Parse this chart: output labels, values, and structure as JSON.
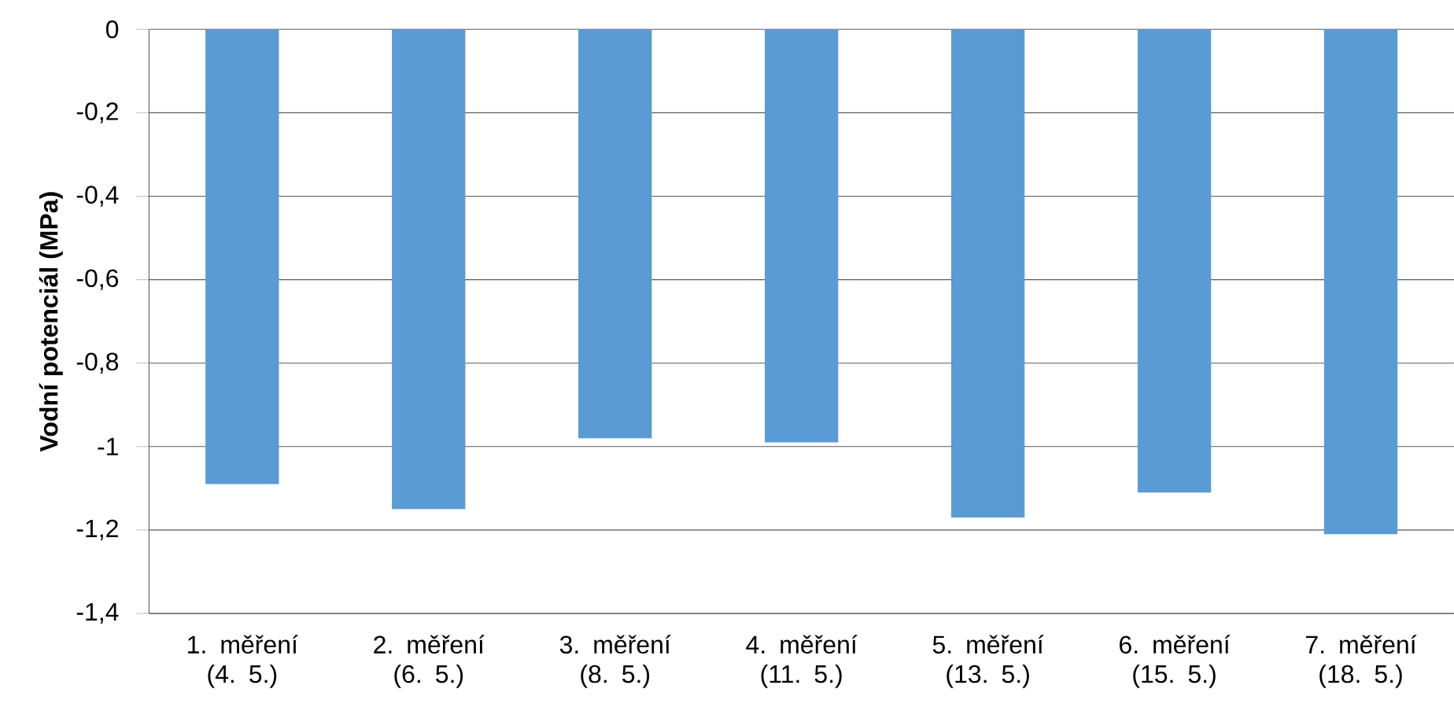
{
  "chart_data": {
    "type": "bar",
    "ylabel": "**Vodní potenciál (MPa)**",
    "categories": [
      "1. měření (4. 5.)",
      "2. měření (6. 5.)",
      "3. měření (8. 5.)",
      "4. měření (11. 5.)",
      "5. měření (13. 5.)",
      "6. měření (15. 5.)",
      "7. měření (18. 5.)"
    ],
    "values": [
      -1.09,
      -1.15,
      -0.98,
      -0.99,
      -1.17,
      -1.11,
      -1.21
    ],
    "color": "#5b9bd5",
    "ylim": [
      -1.4,
      0
    ],
    "yticks": [
      {
        "value": -1.4,
        "label": "-1,4"
      },
      {
        "value": -1.2,
        "label": "-1,2"
      },
      {
        "value": -1,
        "label": "-1"
      },
      {
        "value": -0.8,
        "label": "-0,8"
      },
      {
        "value": -0.6,
        "label": "-0,6"
      },
      {
        "value": -0.4,
        "label": "-0,4"
      },
      {
        "value": -0.2,
        "label": "-0,2"
      },
      {
        "value": 0,
        "label": "0"
      }
    ],
    "grid": "y"
  }
}
